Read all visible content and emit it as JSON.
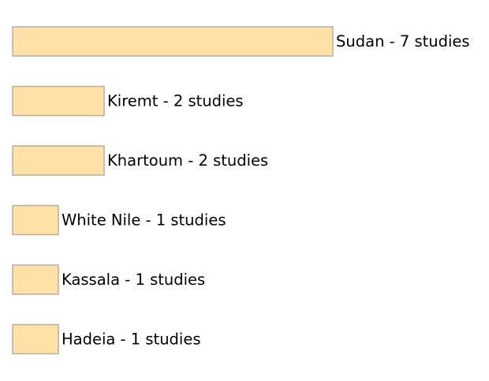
{
  "chart_data": {
    "type": "bar",
    "orientation": "horizontal",
    "title": "",
    "xlabel": "",
    "ylabel": "",
    "grid": false,
    "categories": [
      "Sudan",
      "Kiremt",
      "Khartoum",
      "White Nile",
      "Kassala",
      "Hadeia"
    ],
    "values": [
      7,
      2,
      2,
      1,
      1,
      1
    ],
    "labels": [
      "Sudan - 7 studies",
      "Kiremt - 2 studies",
      "Khartoum - 2 studies",
      "White Nile - 1 studies",
      "Kassala - 1 studies",
      "Hadeia - 1 studies"
    ],
    "colors": {
      "bar_fill": "#ffe0a6",
      "bar_stroke": "#b8b0a0"
    }
  }
}
